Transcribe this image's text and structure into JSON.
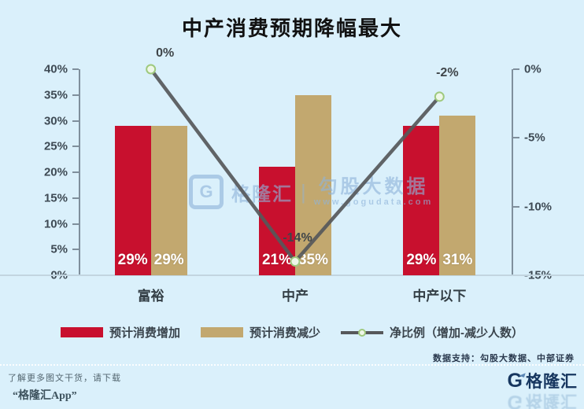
{
  "title": "中产消费预期降幅最大",
  "chart_data": {
    "type": "bar",
    "subtype": "grouped-bars-with-line-overlay",
    "categories": [
      "富裕",
      "中产",
      "中产以下"
    ],
    "series": [
      {
        "name": "预计消费增加",
        "type": "bar",
        "axis": "left",
        "color": "#c8102e",
        "values": [
          29,
          21,
          29
        ],
        "labels": [
          "29%",
          "21%",
          "29%"
        ]
      },
      {
        "name": "预计消费减少",
        "type": "bar",
        "axis": "left",
        "color": "#c2a86f",
        "values": [
          29,
          35,
          31
        ],
        "labels": [
          "29%",
          "35%",
          "31%"
        ]
      },
      {
        "name": "净比例（增加-减少人数）",
        "type": "line",
        "axis": "right",
        "color": "#56585a",
        "values": [
          0,
          -14,
          -2
        ],
        "labels": [
          "0%",
          "-14%",
          "-2%"
        ]
      }
    ],
    "left_axis": {
      "min": 0,
      "max": 40,
      "ticks": [
        "40%",
        "35%",
        "30%",
        "25%",
        "20%",
        "15%",
        "10%",
        "5%",
        "0%"
      ]
    },
    "right_axis": {
      "min": -15,
      "max": 0,
      "ticks": [
        "0%",
        "-5%",
        "-10%",
        "-15%"
      ]
    },
    "grid": false,
    "legend_position": "bottom"
  },
  "watermark": {
    "brand": "格隆汇",
    "name": "勾股大数据",
    "url": "www.gogudata.com",
    "g": "G"
  },
  "footer": {
    "source": "数据支持：勾股大数据、中部证券",
    "promo_line1": "了解更多图文干货，请下载",
    "promo_line2": "“格隆汇App”",
    "brand": "格隆汇",
    "brand_g": "G"
  },
  "colors": {
    "background": "#daf0fb",
    "bar_increase": "#c8102e",
    "bar_decrease": "#c2a86f",
    "line": "#56585a",
    "marker_fill": "#eef7e8",
    "marker_stroke": "#9fc97e",
    "axis": "#7f8f9c"
  }
}
